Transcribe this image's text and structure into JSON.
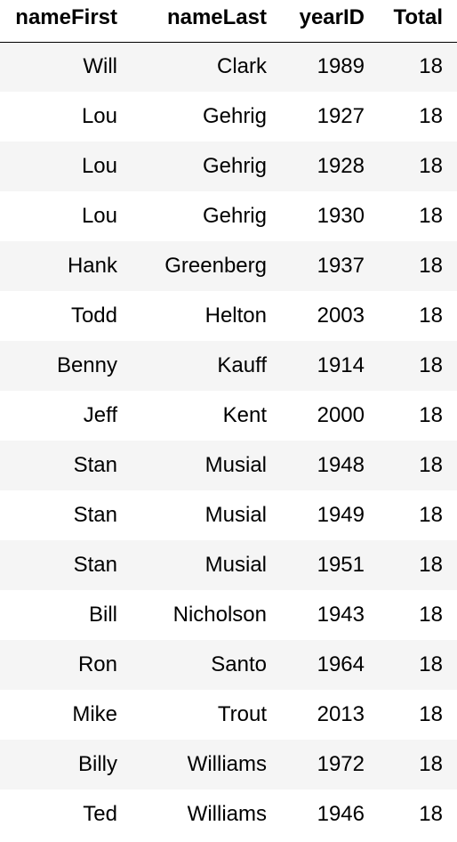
{
  "table": {
    "columns": [
      "nameFirst",
      "nameLast",
      "yearID",
      "Total"
    ],
    "rows": [
      [
        "Will",
        "Clark",
        "1989",
        "18"
      ],
      [
        "Lou",
        "Gehrig",
        "1927",
        "18"
      ],
      [
        "Lou",
        "Gehrig",
        "1928",
        "18"
      ],
      [
        "Lou",
        "Gehrig",
        "1930",
        "18"
      ],
      [
        "Hank",
        "Greenberg",
        "1937",
        "18"
      ],
      [
        "Todd",
        "Helton",
        "2003",
        "18"
      ],
      [
        "Benny",
        "Kauff",
        "1914",
        "18"
      ],
      [
        "Jeff",
        "Kent",
        "2000",
        "18"
      ],
      [
        "Stan",
        "Musial",
        "1948",
        "18"
      ],
      [
        "Stan",
        "Musial",
        "1949",
        "18"
      ],
      [
        "Stan",
        "Musial",
        "1951",
        "18"
      ],
      [
        "Bill",
        "Nicholson",
        "1943",
        "18"
      ],
      [
        "Ron",
        "Santo",
        "1964",
        "18"
      ],
      [
        "Mike",
        "Trout",
        "2013",
        "18"
      ],
      [
        "Billy",
        "Williams",
        "1972",
        "18"
      ],
      [
        "Ted",
        "Williams",
        "1946",
        "18"
      ]
    ]
  }
}
